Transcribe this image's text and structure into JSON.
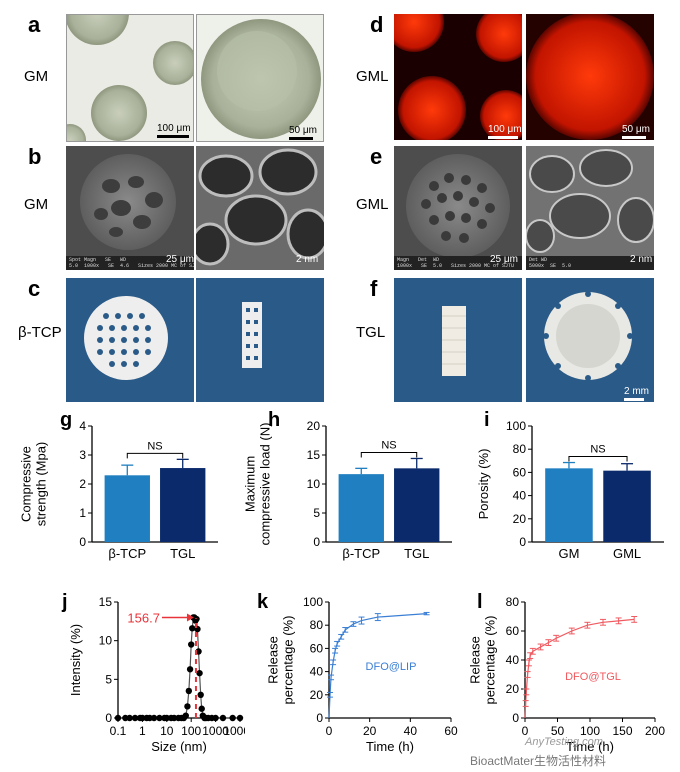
{
  "panels": {
    "a": {
      "letter": "a",
      "label": "GM",
      "scale1": "100 μm",
      "scale2": "50 μm"
    },
    "b": {
      "letter": "b",
      "label": "GM",
      "scale1": "25 μm",
      "scale2": "2 nm"
    },
    "c": {
      "letter": "c",
      "label": "β-TCP"
    },
    "d": {
      "letter": "d",
      "label": "GML",
      "scale1": "100 μm",
      "scale2": "50 μm"
    },
    "e": {
      "letter": "e",
      "label": "GML",
      "scale1": "25 μm",
      "scale2": "2 nm"
    },
    "f": {
      "letter": "f",
      "label": "TGL",
      "scale2": "2 mm"
    }
  },
  "sem_info_b": "Spot Magn   SE   WD\n5.0  1000x   SE  4.6   Sizes 2000 MC of SJTU",
  "sem_info_e": "Magn   Det  WD\n1000x   SE  5.0   Sizes 2000 MC of SJTU",
  "sem_info_e2": "Det WD\n5000x  SE  5.0",
  "watermark": "BioactMater生物活性材料",
  "watermark_site": "AnyTesting.com",
  "colors": {
    "light_blue": "#1f7fc0",
    "dark_blue": "#0a2a6b",
    "red": "#e8333a",
    "pink": "#f05a60",
    "blue_line": "#3a7fd5"
  },
  "chart_data": [
    {
      "id": "g",
      "type": "bar",
      "letter": "g",
      "categories": [
        "β-TCP",
        "TGL"
      ],
      "values": [
        2.3,
        2.55
      ],
      "errors": [
        0.35,
        0.3
      ],
      "ylabel": "Compressive\nstrength (Mpa)",
      "ylim": [
        0,
        4
      ],
      "yticks": [
        "0",
        "1",
        "2",
        "3",
        "4"
      ],
      "annotation": "NS",
      "bar_colors": [
        "#1f7fc0",
        "#0a2a6b"
      ]
    },
    {
      "id": "h",
      "type": "bar",
      "letter": "h",
      "categories": [
        "β-TCP",
        "TGL"
      ],
      "values": [
        11.7,
        12.7
      ],
      "errors": [
        1.0,
        1.7
      ],
      "ylabel": "Maximum\ncompressive load (N)",
      "ylim": [
        0,
        20
      ],
      "yticks": [
        "0",
        "5",
        "10",
        "15",
        "20"
      ],
      "annotation": "NS",
      "bar_colors": [
        "#1f7fc0",
        "#0a2a6b"
      ]
    },
    {
      "id": "i",
      "type": "bar",
      "letter": "i",
      "categories": [
        "GM",
        "GML"
      ],
      "values": [
        63.5,
        61.5
      ],
      "errors": [
        5,
        6
      ],
      "ylabel": "Porosity (%)",
      "ylim": [
        0,
        100
      ],
      "yticks": [
        "0",
        "20",
        "40",
        "60",
        "80",
        "100"
      ],
      "annotation": "NS",
      "bar_colors": [
        "#1f7fc0",
        "#0a2a6b"
      ]
    },
    {
      "id": "j",
      "type": "line",
      "letter": "j",
      "xscale": "log",
      "xlabel": "Size (nm)",
      "ylabel": "Intensity (%)",
      "xlim": [
        0.1,
        10000
      ],
      "xticks": [
        "0.1",
        "1",
        "10",
        "100",
        "1000",
        "10000"
      ],
      "ylim": [
        0,
        15
      ],
      "yticks": [
        "0",
        "5",
        "10",
        "15"
      ],
      "annotation": "156.7",
      "peak": 156.7,
      "x": [
        0.1,
        0.2,
        0.3,
        0.5,
        0.8,
        1,
        1.5,
        2,
        3,
        5,
        8,
        10,
        15,
        20,
        30,
        40,
        50,
        60,
        70,
        80,
        90,
        100,
        110,
        122,
        135,
        150,
        165,
        180,
        200,
        220,
        245,
        270,
        300,
        350,
        400,
        500,
        700,
        1000,
        2000,
        5000,
        10000
      ],
      "y": [
        0,
        0,
        0,
        0,
        0,
        0,
        0,
        0,
        0,
        0,
        0,
        0,
        0,
        0,
        0,
        0,
        0,
        0.3,
        1.5,
        3.5,
        6.3,
        9.5,
        11.6,
        13.0,
        13.0,
        12.6,
        12.8,
        11.5,
        8.6,
        5.8,
        3.0,
        1.2,
        0.3,
        0,
        0,
        0,
        0,
        0,
        0,
        0,
        0
      ]
    },
    {
      "id": "k",
      "type": "line",
      "letter": "k",
      "xlabel": "Time (h)",
      "ylabel": "Release\npercentage (%)",
      "xlim": [
        0,
        60
      ],
      "xticks": [
        "0",
        "20",
        "40",
        "60"
      ],
      "ylim": [
        0,
        100
      ],
      "yticks": [
        "0",
        "20",
        "40",
        "60",
        "80",
        "100"
      ],
      "annotation": "DFO@LIP",
      "x": [
        0,
        0.5,
        1,
        2,
        3,
        4,
        6,
        8,
        12,
        16,
        24,
        48
      ],
      "y": [
        0,
        20,
        35,
        48,
        58,
        64,
        70,
        76,
        81,
        84,
        87,
        90
      ],
      "errors": [
        0,
        2,
        2,
        2,
        2,
        2,
        2,
        2,
        2,
        3,
        3,
        1
      ]
    },
    {
      "id": "l",
      "type": "line",
      "letter": "l",
      "xlabel": "Time (h)",
      "ylabel": "Release\npercentage (%)",
      "xlim": [
        0,
        200
      ],
      "xticks": [
        "0",
        "50",
        "100",
        "150",
        "200"
      ],
      "ylim": [
        0,
        80
      ],
      "yticks": [
        "0",
        "20",
        "40",
        "60",
        "80"
      ],
      "annotation": "DFO@TGL",
      "x": [
        0,
        1,
        2,
        4,
        6,
        8,
        12,
        24,
        36,
        48,
        72,
        96,
        120,
        144,
        168
      ],
      "y": [
        0,
        10,
        18,
        30,
        38,
        43,
        46,
        49,
        52,
        55,
        60,
        64,
        66,
        67,
        68
      ],
      "errors": [
        0,
        2,
        2,
        2,
        2,
        2,
        2,
        2,
        2,
        2,
        2,
        2,
        2,
        2,
        2
      ]
    }
  ]
}
